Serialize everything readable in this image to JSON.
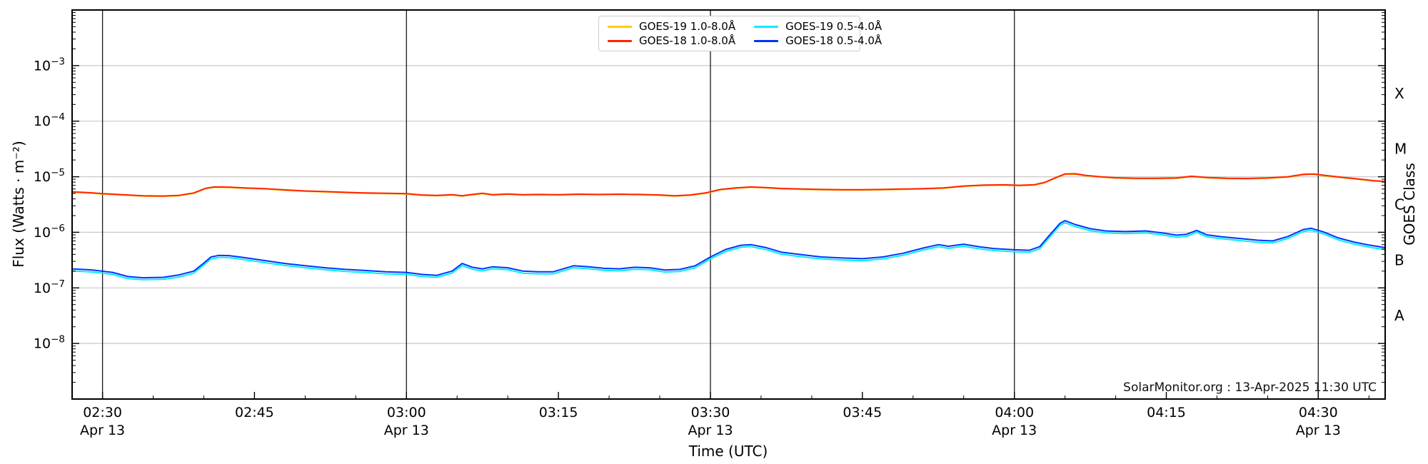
{
  "figure": {
    "watermark": "SolarMonitor.org : 13-Apr-2025 11:30 UTC",
    "xlabel": "Time (UTC)",
    "ylabel_left": "Flux (Watts · m⁻²)",
    "ylabel_right": "GOES Class",
    "background": "#ffffff"
  },
  "chart_data": {
    "type": "line",
    "title": "",
    "x_axis": {
      "unit": "minutes after 02:00 UTC on 13-Apr-2025",
      "range": [
        27.0,
        156.6
      ],
      "minor_tick_step_minutes": 5,
      "vline_minutes": [
        30,
        60,
        90,
        120,
        150
      ],
      "ticks": [
        {
          "minutes": 30,
          "label": "02:30",
          "date": "Apr 13"
        },
        {
          "minutes": 45,
          "label": "02:45"
        },
        {
          "minutes": 60,
          "label": "03:00",
          "date": "Apr 13"
        },
        {
          "minutes": 75,
          "label": "03:15"
        },
        {
          "minutes": 90,
          "label": "03:30",
          "date": "Apr 13"
        },
        {
          "minutes": 105,
          "label": "03:45"
        },
        {
          "minutes": 120,
          "label": "04:00",
          "date": "Apr 13"
        },
        {
          "minutes": 135,
          "label": "04:15"
        },
        {
          "minutes": 150,
          "label": "04:30",
          "date": "Apr 13"
        }
      ]
    },
    "y_axis": {
      "scale": "log",
      "range": [
        1e-09,
        0.01
      ],
      "grid_on": true,
      "ticks": [
        {
          "value": 0.001,
          "exp_label": "−3"
        },
        {
          "value": 0.0001,
          "exp_label": "−4"
        },
        {
          "value": 1e-05,
          "exp_label": "−5"
        },
        {
          "value": 1e-06,
          "exp_label": "−6"
        },
        {
          "value": 1e-07,
          "exp_label": "−7"
        },
        {
          "value": 1e-08,
          "exp_label": "−8"
        }
      ],
      "goes_classes": [
        {
          "label": "X",
          "flux": 0.000316
        },
        {
          "label": "M",
          "flux": 3.16e-05
        },
        {
          "label": "C",
          "flux": 3.16e-06
        },
        {
          "label": "B",
          "flux": 3.16e-07
        },
        {
          "label": "A",
          "flux": 3.16e-08
        }
      ]
    },
    "grid_color": "#c9c9c9",
    "vline_color": "#1a1a1a",
    "legend_position": "upper center",
    "series": [
      {
        "name": "GOES-19 1.0-8.0Å",
        "slug": "goes19-long",
        "color": "#ffcc00",
        "width": 2,
        "x": [
          27,
          28.5,
          30,
          32,
          34,
          36,
          37.5,
          39,
          40.2,
          41,
          42.5,
          44,
          46,
          48,
          50,
          52,
          54,
          56,
          58,
          60,
          61.5,
          63,
          64.5,
          65.5,
          66.5,
          67.5,
          68.5,
          70,
          71.5,
          73,
          75,
          77,
          79,
          81,
          83,
          85,
          86.5,
          88,
          89.5,
          91,
          92.5,
          94,
          95.5,
          97,
          99,
          101,
          103,
          105,
          107,
          109,
          111,
          113,
          115,
          117,
          119,
          120.5,
          122,
          123,
          124,
          125,
          126,
          127,
          128.5,
          130,
          132,
          134,
          136,
          137.5,
          139,
          141,
          143,
          145,
          147,
          148.5,
          149.5,
          151,
          152.5,
          154,
          155.5,
          156.6
        ],
        "y": [
          5.27e-06,
          5.12e-06,
          4.88e-06,
          4.68e-06,
          4.48e-06,
          4.43e-06,
          4.53e-06,
          5.02e-06,
          6.11e-06,
          6.45e-06,
          6.4e-06,
          6.21e-06,
          6.01e-06,
          5.71e-06,
          5.47e-06,
          5.32e-06,
          5.17e-06,
          5.02e-06,
          4.97e-06,
          4.88e-06,
          4.63e-06,
          4.53e-06,
          4.68e-06,
          4.48e-06,
          4.73e-06,
          4.97e-06,
          4.68e-06,
          4.83e-06,
          4.68e-06,
          4.73e-06,
          4.68e-06,
          4.78e-06,
          4.73e-06,
          4.78e-06,
          4.73e-06,
          4.63e-06,
          4.48e-06,
          4.63e-06,
          5.02e-06,
          5.81e-06,
          6.21e-06,
          6.45e-06,
          6.3e-06,
          6.06e-06,
          5.91e-06,
          5.81e-06,
          5.76e-06,
          5.76e-06,
          5.81e-06,
          5.91e-06,
          6.01e-06,
          6.21e-06,
          6.7e-06,
          6.99e-06,
          7.04e-06,
          6.9e-06,
          7.09e-06,
          7.78e-06,
          9.36e-06,
          1.1e-05,
          1.11e-05,
          1.04e-05,
          9.85e-06,
          9.46e-06,
          9.26e-06,
          9.21e-06,
          9.36e-06,
          1e-05,
          9.55e-06,
          9.26e-06,
          9.16e-06,
          9.36e-06,
          9.85e-06,
          1.08e-05,
          1.1e-05,
          1.02e-05,
          9.55e-06,
          8.96e-06,
          8.37e-06,
          8.08e-06
        ]
      },
      {
        "name": "GOES-18 1.0-8.0Å",
        "slug": "goes18-long",
        "color": "#ff2400",
        "width": 2,
        "x": [
          27,
          28.5,
          30,
          32,
          34,
          36,
          37.5,
          39,
          40.2,
          41,
          42.5,
          44,
          46,
          48,
          50,
          52,
          54,
          56,
          58,
          60,
          61.5,
          63,
          64.5,
          65.5,
          66.5,
          67.5,
          68.5,
          70,
          71.5,
          73,
          75,
          77,
          79,
          81,
          83,
          85,
          86.5,
          88,
          89.5,
          91,
          92.5,
          94,
          95.5,
          97,
          99,
          101,
          103,
          105,
          107,
          109,
          111,
          113,
          115,
          117,
          119,
          120.5,
          122,
          123,
          124,
          125,
          126,
          127,
          128.5,
          130,
          132,
          134,
          136,
          137.5,
          139,
          141,
          143,
          145,
          147,
          148.5,
          149.5,
          151,
          152.5,
          154,
          155.5,
          156.6
        ],
        "y": [
          5.35e-06,
          5.2e-06,
          4.95e-06,
          4.75e-06,
          4.55e-06,
          4.5e-06,
          4.6e-06,
          5.1e-06,
          6.2e-06,
          6.55e-06,
          6.5e-06,
          6.3e-06,
          6.1e-06,
          5.8e-06,
          5.55e-06,
          5.4e-06,
          5.25e-06,
          5.1e-06,
          5.05e-06,
          4.95e-06,
          4.7e-06,
          4.6e-06,
          4.75e-06,
          4.55e-06,
          4.8e-06,
          5.05e-06,
          4.75e-06,
          4.9e-06,
          4.75e-06,
          4.8e-06,
          4.75e-06,
          4.85e-06,
          4.8e-06,
          4.85e-06,
          4.8e-06,
          4.7e-06,
          4.55e-06,
          4.7e-06,
          5.1e-06,
          5.9e-06,
          6.3e-06,
          6.55e-06,
          6.4e-06,
          6.15e-06,
          6e-06,
          5.9e-06,
          5.85e-06,
          5.85e-06,
          5.9e-06,
          6e-06,
          6.1e-06,
          6.3e-06,
          6.8e-06,
          7.1e-06,
          7.15e-06,
          7e-06,
          7.2e-06,
          7.9e-06,
          9.5e-06,
          1.12e-05,
          1.13e-05,
          1.06e-05,
          1e-05,
          9.6e-06,
          9.4e-06,
          9.35e-06,
          9.5e-06,
          1.02e-05,
          9.7e-06,
          9.4e-06,
          9.3e-06,
          9.5e-06,
          1e-05,
          1.1e-05,
          1.12e-05,
          1.04e-05,
          9.7e-06,
          9.1e-06,
          8.5e-06,
          8.2e-06
        ]
      },
      {
        "name": "GOES-19 0.5-4.0Å",
        "slug": "goes19-short",
        "color": "#00eeff",
        "width": 2,
        "x": [
          27,
          29,
          31,
          32.5,
          34,
          36,
          37.5,
          39,
          40,
          40.7,
          41.5,
          42.5,
          44,
          46,
          48,
          50,
          52,
          54,
          56,
          58,
          60,
          61.5,
          63,
          64.5,
          65.5,
          66.5,
          67.5,
          68.5,
          70,
          71.5,
          73,
          74.5,
          76.5,
          78,
          79.5,
          81,
          82.5,
          84,
          85.5,
          87,
          88.5,
          90,
          91.5,
          93,
          94,
          95.5,
          97,
          99,
          101,
          103,
          105,
          107,
          109,
          111,
          112.5,
          113.5,
          115,
          116.5,
          118,
          120,
          121.5,
          122.5,
          123.5,
          124.5,
          125,
          126,
          127.5,
          129,
          131,
          133,
          134.5,
          136,
          137,
          138,
          139,
          140.5,
          142,
          144,
          145.5,
          147,
          148.5,
          149.3,
          150.5,
          152,
          153.5,
          155,
          156.6
        ],
        "y": [
          2.02e-07,
          1.93e-07,
          1.75e-07,
          1.47e-07,
          1.4e-07,
          1.43e-07,
          1.56e-07,
          1.84e-07,
          2.58e-07,
          3.31e-07,
          3.54e-07,
          3.5e-07,
          3.22e-07,
          2.85e-07,
          2.53e-07,
          2.3e-07,
          2.12e-07,
          1.98e-07,
          1.89e-07,
          1.79e-07,
          1.75e-07,
          1.61e-07,
          1.55e-07,
          1.84e-07,
          2.53e-07,
          2.16e-07,
          2.02e-07,
          2.21e-07,
          2.12e-07,
          1.84e-07,
          1.79e-07,
          1.79e-07,
          2.3e-07,
          2.21e-07,
          2.07e-07,
          2.02e-07,
          2.16e-07,
          2.12e-07,
          1.93e-07,
          1.98e-07,
          2.3e-07,
          3.31e-07,
          4.51e-07,
          5.38e-07,
          5.52e-07,
          4.88e-07,
          4.05e-07,
          3.63e-07,
          3.31e-07,
          3.17e-07,
          3.08e-07,
          3.31e-07,
          3.86e-07,
          4.78e-07,
          5.52e-07,
          5.15e-07,
          5.61e-07,
          5.06e-07,
          4.69e-07,
          4.46e-07,
          4.37e-07,
          5.06e-07,
          8.28e-07,
          1.33e-06,
          1.49e-06,
          1.27e-06,
          1.07e-06,
          9.75e-07,
          9.48e-07,
          9.75e-07,
          9.02e-07,
          8.19e-07,
          8.46e-07,
          9.94e-07,
          8.28e-07,
          7.64e-07,
          7.18e-07,
          6.62e-07,
          6.44e-07,
          7.73e-07,
          1.03e-06,
          1.09e-06,
          9.38e-07,
          7.27e-07,
          6.16e-07,
          5.43e-07,
          4.88e-07
        ]
      },
      {
        "name": "GOES-18 0.5-4.0Å",
        "slug": "goes18-short",
        "color": "#0033ff",
        "width": 2,
        "x": [
          27,
          29,
          31,
          32.5,
          34,
          36,
          37.5,
          39,
          40,
          40.7,
          41.5,
          42.5,
          44,
          46,
          48,
          50,
          52,
          54,
          56,
          58,
          60,
          61.5,
          63,
          64.5,
          65.5,
          66.5,
          67.5,
          68.5,
          70,
          71.5,
          73,
          74.5,
          76.5,
          78,
          79.5,
          81,
          82.5,
          84,
          85.5,
          87,
          88.5,
          90,
          91.5,
          93,
          94,
          95.5,
          97,
          99,
          101,
          103,
          105,
          107,
          109,
          111,
          112.5,
          113.5,
          115,
          116.5,
          118,
          120,
          121.5,
          122.5,
          123.5,
          124.5,
          125,
          126,
          127.5,
          129,
          131,
          133,
          134.5,
          136,
          137,
          138,
          139,
          140.5,
          142,
          144,
          145.5,
          147,
          148.5,
          149.3,
          150.5,
          152,
          153.5,
          155,
          156.6
        ],
        "y": [
          2.2e-07,
          2.1e-07,
          1.9e-07,
          1.6e-07,
          1.52e-07,
          1.55e-07,
          1.7e-07,
          2e-07,
          2.8e-07,
          3.6e-07,
          3.85e-07,
          3.8e-07,
          3.5e-07,
          3.1e-07,
          2.75e-07,
          2.5e-07,
          2.3e-07,
          2.15e-07,
          2.05e-07,
          1.95e-07,
          1.9e-07,
          1.75e-07,
          1.68e-07,
          2e-07,
          2.75e-07,
          2.35e-07,
          2.2e-07,
          2.4e-07,
          2.3e-07,
          2e-07,
          1.95e-07,
          1.95e-07,
          2.5e-07,
          2.4e-07,
          2.25e-07,
          2.2e-07,
          2.35e-07,
          2.3e-07,
          2.1e-07,
          2.15e-07,
          2.5e-07,
          3.6e-07,
          4.9e-07,
          5.85e-07,
          6e-07,
          5.3e-07,
          4.4e-07,
          3.95e-07,
          3.6e-07,
          3.45e-07,
          3.35e-07,
          3.6e-07,
          4.2e-07,
          5.2e-07,
          6e-07,
          5.6e-07,
          6.1e-07,
          5.5e-07,
          5.1e-07,
          4.85e-07,
          4.75e-07,
          5.5e-07,
          9e-07,
          1.45e-06,
          1.62e-06,
          1.38e-06,
          1.16e-06,
          1.06e-06,
          1.03e-06,
          1.06e-06,
          9.8e-07,
          8.9e-07,
          9.2e-07,
          1.08e-06,
          9e-07,
          8.3e-07,
          7.8e-07,
          7.2e-07,
          7e-07,
          8.4e-07,
          1.12e-06,
          1.18e-06,
          1.02e-06,
          7.9e-07,
          6.7e-07,
          5.9e-07,
          5.3e-07
        ]
      }
    ]
  }
}
